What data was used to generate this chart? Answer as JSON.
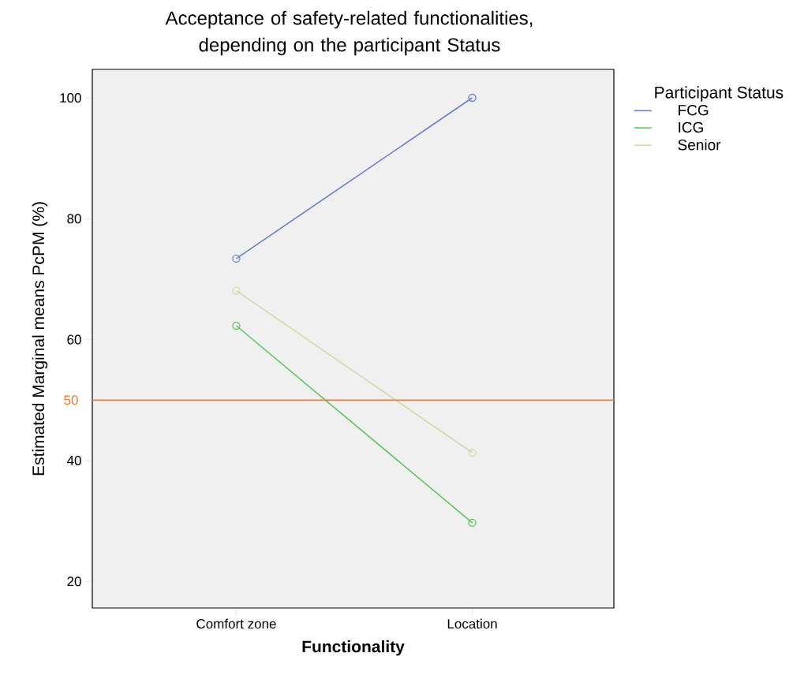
{
  "chart_data": {
    "type": "line",
    "title": "Acceptance of safety-related functionalities, depending on the participant Status",
    "xlabel": "Functionality",
    "ylabel": "Estimated Marginal means PcPM (%)",
    "legend_title": "Participant Status",
    "categories": [
      "Comfort zone",
      "Location"
    ],
    "series": [
      {
        "name": "FCG",
        "color": "#6a7fc6",
        "values": [
          73.4,
          100
        ]
      },
      {
        "name": "ICG",
        "color": "#5cc85c",
        "values": [
          62.3,
          29.7
        ]
      },
      {
        "name": "Senior",
        "color": "#d9d6aa",
        "values": [
          68.1,
          41.3
        ]
      }
    ],
    "ylim": [
      15.6,
      104.7
    ],
    "yticks": [
      20,
      40,
      60,
      80,
      100
    ],
    "ref_lines": [
      {
        "axis": "y",
        "value": 50,
        "label": "50",
        "color": "#f07a30"
      }
    ],
    "legend": "top right",
    "marker": "circle",
    "grid": false
  }
}
